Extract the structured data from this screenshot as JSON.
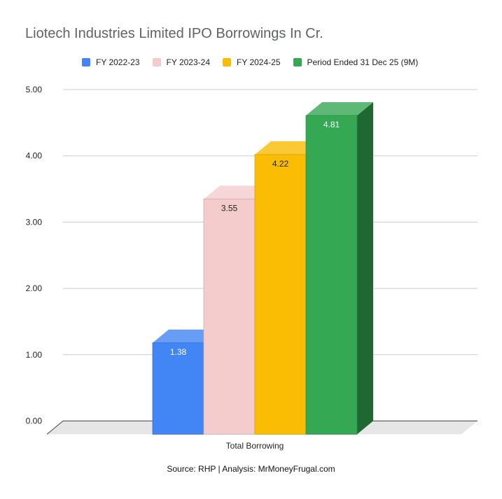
{
  "chart_data": {
    "type": "bar",
    "title": "Liotech Industries Limited IPO Borrowings In Cr.",
    "categories": [
      "Total Borrowing"
    ],
    "series": [
      {
        "name": "FY 2022-23",
        "values": [
          1.38
        ],
        "color": "#4285f4",
        "label_color": "#ffffff"
      },
      {
        "name": "FY 2023-24",
        "values": [
          3.55
        ],
        "color": "#f4cccc",
        "label_color": "#222222"
      },
      {
        "name": "FY 2024-25",
        "values": [
          4.22
        ],
        "color": "#fbbc04",
        "label_color": "#222222"
      },
      {
        "name": "Period Ended 31 Dec 25 (9M)",
        "values": [
          4.81
        ],
        "color": "#34a853",
        "label_color": "#ffffff"
      }
    ],
    "y_ticks": [
      "0.00",
      "1.00",
      "2.00",
      "3.00",
      "4.00",
      "5.00"
    ],
    "ylim": [
      0,
      5
    ],
    "grid": true,
    "legend_position": "top",
    "style": "3d",
    "xlabel": "",
    "ylabel": "",
    "source": "Source: RHP | Analysis: MrMoneyFrugal.com"
  }
}
